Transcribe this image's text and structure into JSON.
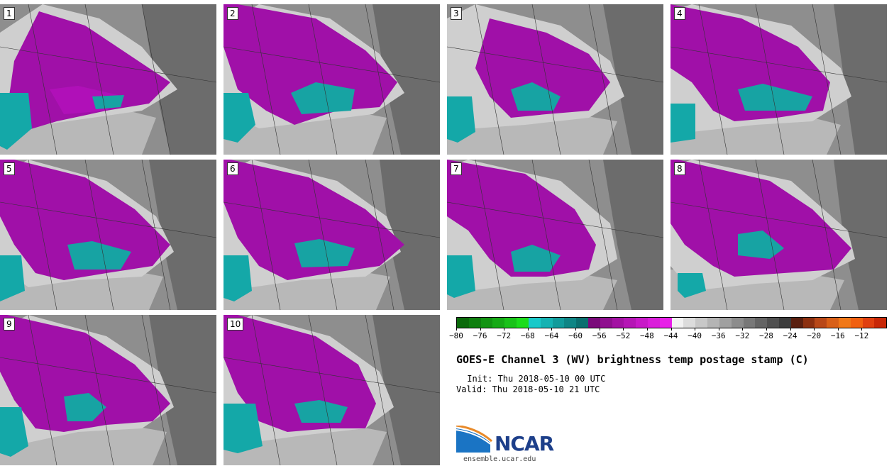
{
  "panels": [
    {
      "label": "1"
    },
    {
      "label": "2"
    },
    {
      "label": "3"
    },
    {
      "label": "4"
    },
    {
      "label": "5"
    },
    {
      "label": "6"
    },
    {
      "label": "7"
    },
    {
      "label": "8"
    },
    {
      "label": "9"
    },
    {
      "label": "10"
    }
  ],
  "colorbar": {
    "ticks": [
      "−80",
      "−76",
      "−72",
      "−68",
      "−64",
      "−60",
      "−56",
      "−52",
      "−48",
      "−44",
      "−40",
      "−36",
      "−32",
      "−28",
      "−24",
      "−20",
      "−16",
      "−12"
    ],
    "colors": [
      "#0b6a0b",
      "#0f7f0f",
      "#129412",
      "#16aa16",
      "#1ac21a",
      "#1ddc1d",
      "#19c9c9",
      "#15b2b2",
      "#129b9b",
      "#0f8585",
      "#0b6f6f",
      "#7a0a7a",
      "#8f0f8f",
      "#a312a3",
      "#b516b5",
      "#c81ac8",
      "#da1eda",
      "#e820e8",
      "#f2f2f2",
      "#dcdcdc",
      "#c8c8c8",
      "#b4b4b4",
      "#a0a0a0",
      "#8c8c8c",
      "#787878",
      "#646464",
      "#505050",
      "#3c3c3c",
      "#5a2010",
      "#8c3010",
      "#b84818",
      "#d86018",
      "#f07818",
      "#f06010",
      "#e04010",
      "#c82808"
    ]
  },
  "title": "GOES-E Channel 3 (WV) brightness temp postage stamp (C)",
  "init": " Init: Thu 2018-05-10 00 UTC",
  "valid": "Valid: Thu 2018-05-10 21 UTC",
  "logo": {
    "text": "NCAR",
    "url": "ensemble.ucar.edu"
  }
}
